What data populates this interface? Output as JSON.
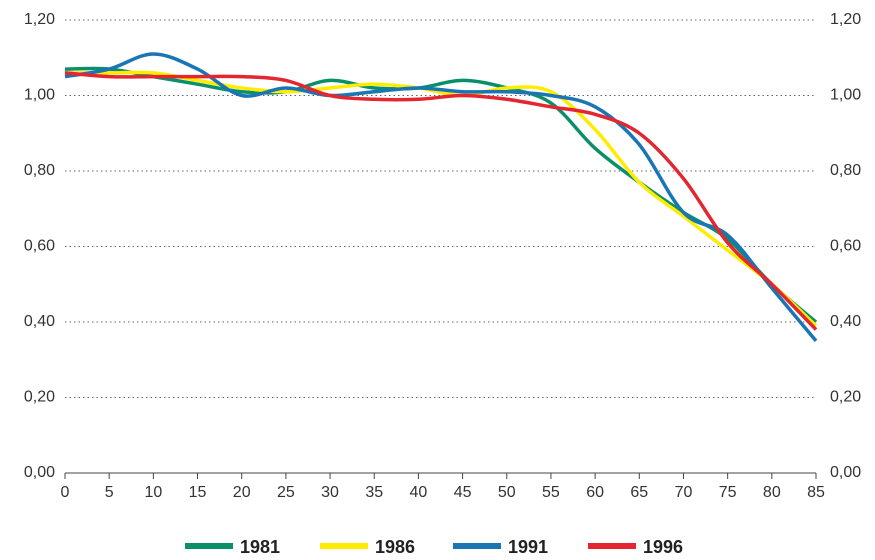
{
  "chart_data": {
    "type": "line",
    "x": [
      0,
      5,
      10,
      15,
      20,
      25,
      30,
      35,
      40,
      45,
      50,
      55,
      60,
      65,
      70,
      75,
      80,
      85
    ],
    "xlim": [
      0,
      85
    ],
    "xticks": [
      0,
      5,
      10,
      15,
      20,
      25,
      30,
      35,
      40,
      45,
      50,
      55,
      60,
      65,
      70,
      75,
      80,
      85
    ],
    "ylim": [
      0,
      1.2
    ],
    "yticks": [
      {
        "value": 0,
        "label": "0,00"
      },
      {
        "value": 0.2,
        "label": "0,20"
      },
      {
        "value": 0.4,
        "label": "0,40"
      },
      {
        "value": 0.6,
        "label": "0,60"
      },
      {
        "value": 0.8,
        "label": "0,80"
      },
      {
        "value": 1.0,
        "label": "1,00"
      },
      {
        "value": 1.2,
        "label": "1,20"
      }
    ],
    "grid": true,
    "legend": "bottom",
    "series": [
      {
        "name": "1981",
        "color": "#0a8f6a",
        "values": [
          1.07,
          1.07,
          1.05,
          1.03,
          1.01,
          1.01,
          1.04,
          1.02,
          1.02,
          1.04,
          1.02,
          0.98,
          0.86,
          0.77,
          0.69,
          0.62,
          0.5,
          0.4
        ]
      },
      {
        "name": "1986",
        "color": "#ffec00",
        "values": [
          1.06,
          1.06,
          1.06,
          1.04,
          1.02,
          1.01,
          1.02,
          1.03,
          1.02,
          1.0,
          1.02,
          1.01,
          0.91,
          0.77,
          0.68,
          0.59,
          0.5,
          0.39
        ]
      },
      {
        "name": "1991",
        "color": "#1a75b5",
        "values": [
          1.05,
          1.07,
          1.11,
          1.07,
          1.0,
          1.02,
          1.0,
          1.01,
          1.02,
          1.01,
          1.01,
          1.0,
          0.97,
          0.87,
          0.69,
          0.63,
          0.49,
          0.35
        ]
      },
      {
        "name": "1996",
        "color": "#e3262f",
        "values": [
          1.06,
          1.05,
          1.05,
          1.05,
          1.05,
          1.04,
          1.0,
          0.99,
          0.99,
          1.0,
          0.99,
          0.97,
          0.95,
          0.9,
          0.78,
          0.61,
          0.5,
          0.38
        ]
      }
    ]
  }
}
